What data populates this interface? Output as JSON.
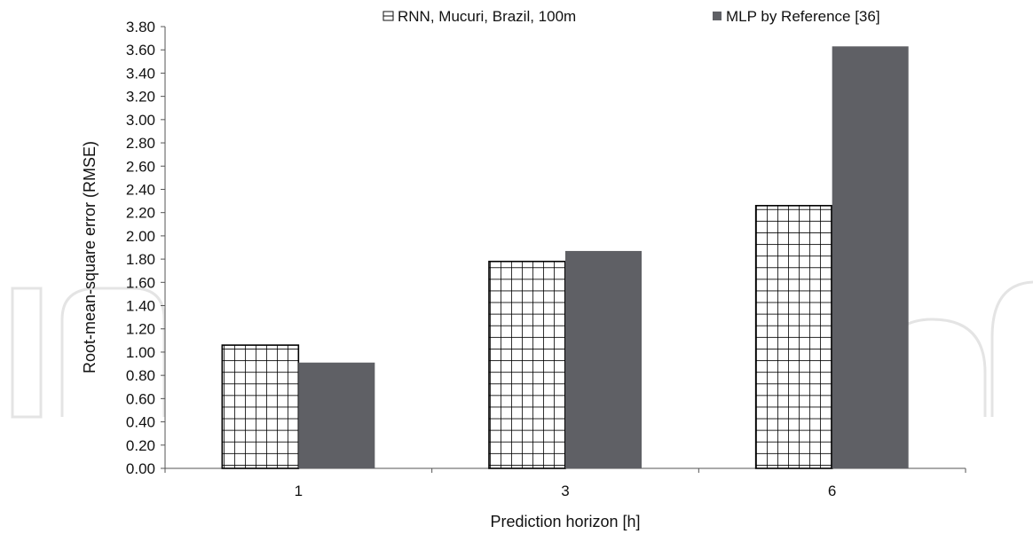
{
  "chart_data": {
    "type": "bar",
    "title": "",
    "xlabel": "Prediction horizon [h]",
    "ylabel": "Root-mean-square  error (RMSE)",
    "categories": [
      "1",
      "3",
      "6"
    ],
    "series": [
      {
        "name": "RNN, Mucuri, Brazil, 100m",
        "values": [
          1.06,
          1.78,
          2.26
        ],
        "fill": "grid-hatch",
        "color": "#000000"
      },
      {
        "name": "MLP by Reference [36]",
        "values": [
          0.91,
          1.87,
          3.63
        ],
        "fill": "solid",
        "color": "#5f6065"
      }
    ],
    "ylim": [
      0,
      3.8
    ],
    "yticks": [
      "0.00",
      "0.20",
      "0.40",
      "0.60",
      "0.80",
      "1.00",
      "1.20",
      "1.40",
      "1.60",
      "1.80",
      "2.00",
      "2.20",
      "2.40",
      "2.60",
      "2.80",
      "3.00",
      "3.20",
      "3.40",
      "3.60",
      "3.80"
    ],
    "grid": false,
    "legend_position": "top"
  }
}
